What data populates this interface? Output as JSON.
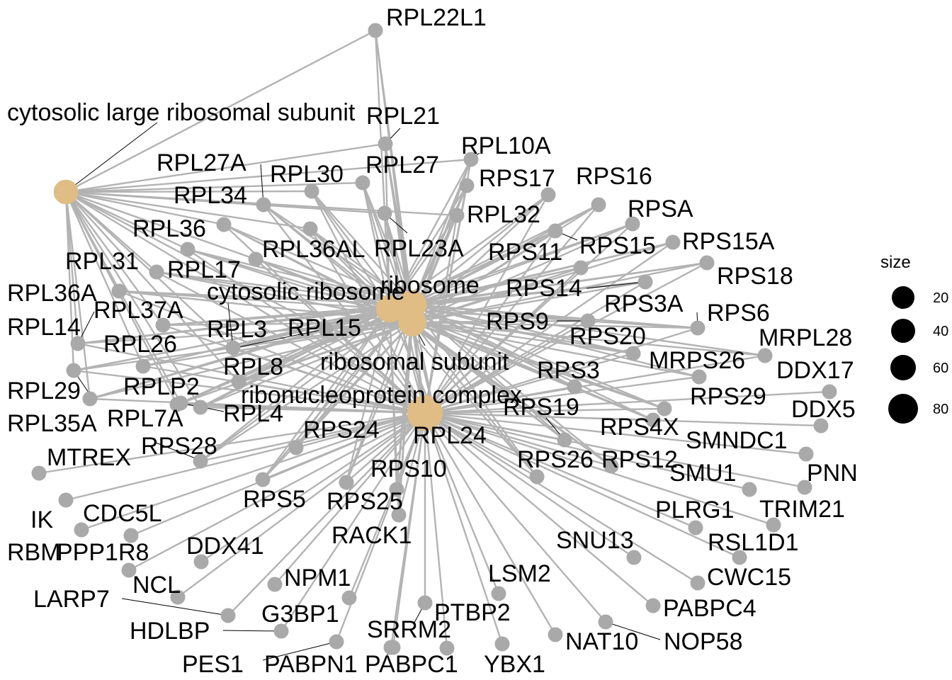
{
  "colors": {
    "category": "#dfbd85",
    "gene": "#a9a9a9",
    "edge": "#b3b3b3",
    "leader": "#000000"
  },
  "categories": [
    {
      "id": "c1",
      "label": "cytosolic large ribosomal subunit",
      "size": 30
    },
    {
      "id": "c2",
      "label": "cytosolic ribosome",
      "size": 42
    },
    {
      "id": "c3",
      "label": "ribosome",
      "size": 50
    },
    {
      "id": "c4",
      "label": "ribosomal subunit",
      "size": 46
    },
    {
      "id": "c5",
      "label": "ribonucleoprotein complex",
      "size": 90
    }
  ],
  "genes": [
    {
      "id": "RPL22L1",
      "label": "RPL22L1"
    },
    {
      "id": "RPL21",
      "label": "RPL21"
    },
    {
      "id": "RPL10A",
      "label": "RPL10A"
    },
    {
      "id": "RPL27A",
      "label": "RPL27A"
    },
    {
      "id": "RPL30",
      "label": "RPL30"
    },
    {
      "id": "RPL27",
      "label": "RPL27"
    },
    {
      "id": "RPS17",
      "label": "RPS17"
    },
    {
      "id": "RPS16",
      "label": "RPS16"
    },
    {
      "id": "RPL34",
      "label": "RPL34"
    },
    {
      "id": "RPL32",
      "label": "RPL32"
    },
    {
      "id": "RPSA",
      "label": "RPSA"
    },
    {
      "id": "RPL36",
      "label": "RPL36"
    },
    {
      "id": "RPL36AL",
      "label": "RPL36AL"
    },
    {
      "id": "RPL23A",
      "label": "RPL23A"
    },
    {
      "id": "RPS11",
      "label": "RPS11"
    },
    {
      "id": "RPS15",
      "label": "RPS15"
    },
    {
      "id": "RPS15A",
      "label": "RPS15A"
    },
    {
      "id": "RPL31",
      "label": "RPL31"
    },
    {
      "id": "RPL17",
      "label": "RPL17"
    },
    {
      "id": "RPS18",
      "label": "RPS18"
    },
    {
      "id": "RPL36A",
      "label": "RPL36A"
    },
    {
      "id": "RPS14",
      "label": "RPS14"
    },
    {
      "id": "RPL37A",
      "label": "RPL37A"
    },
    {
      "id": "RPS3A",
      "label": "RPS3A"
    },
    {
      "id": "RPS6",
      "label": "RPS6"
    },
    {
      "id": "RPL14",
      "label": "RPL14"
    },
    {
      "id": "RPL3",
      "label": "RPL3"
    },
    {
      "id": "RPL15",
      "label": "RPL15"
    },
    {
      "id": "RPS9",
      "label": "RPS9"
    },
    {
      "id": "RPS20",
      "label": "RPS20"
    },
    {
      "id": "MRPL28",
      "label": "MRPL28"
    },
    {
      "id": "RPL26",
      "label": "RPL26"
    },
    {
      "id": "MRPS26",
      "label": "MRPS26"
    },
    {
      "id": "RPL8",
      "label": "RPL8"
    },
    {
      "id": "DDX17",
      "label": "DDX17"
    },
    {
      "id": "RPS3",
      "label": "RPS3"
    },
    {
      "id": "RPL29",
      "label": "RPL29"
    },
    {
      "id": "RPLP2",
      "label": "RPLP2"
    },
    {
      "id": "RPS29",
      "label": "RPS29"
    },
    {
      "id": "RPL35A",
      "label": "RPL35A"
    },
    {
      "id": "RPL7A",
      "label": "RPL7A"
    },
    {
      "id": "RPL4",
      "label": "RPL4"
    },
    {
      "id": "RPS19",
      "label": "RPS19"
    },
    {
      "id": "DDX5",
      "label": "DDX5"
    },
    {
      "id": "RPS4X",
      "label": "RPS4X"
    },
    {
      "id": "RPS24",
      "label": "RPS24"
    },
    {
      "id": "RPL24",
      "label": "RPL24"
    },
    {
      "id": "SMNDC1",
      "label": "SMNDC1"
    },
    {
      "id": "MTREX",
      "label": "MTREX"
    },
    {
      "id": "RPS28",
      "label": "RPS28"
    },
    {
      "id": "RPS26",
      "label": "RPS26"
    },
    {
      "id": "RPS12",
      "label": "RPS12"
    },
    {
      "id": "PNN",
      "label": "PNN"
    },
    {
      "id": "RPS10",
      "label": "RPS10"
    },
    {
      "id": "SMU1",
      "label": "SMU1"
    },
    {
      "id": "IK",
      "label": "IK"
    },
    {
      "id": "CDC5L",
      "label": "CDC5L"
    },
    {
      "id": "RPS5",
      "label": "RPS5"
    },
    {
      "id": "RPS25",
      "label": "RPS25"
    },
    {
      "id": "PLRG1",
      "label": "PLRG1"
    },
    {
      "id": "TRIM21",
      "label": "TRIM21"
    },
    {
      "id": "RBM",
      "label": "RBM"
    },
    {
      "id": "PPP1R8",
      "label": "PPP1R8"
    },
    {
      "id": "DDX41",
      "label": "DDX41"
    },
    {
      "id": "RACK1",
      "label": "RACK1"
    },
    {
      "id": "SNU13",
      "label": "SNU13"
    },
    {
      "id": "RSL1D1",
      "label": "RSL1D1"
    },
    {
      "id": "NCL",
      "label": "NCL"
    },
    {
      "id": "LSM2",
      "label": "LSM2"
    },
    {
      "id": "NPM1",
      "label": "NPM1"
    },
    {
      "id": "CWC15",
      "label": "CWC15"
    },
    {
      "id": "LARP7",
      "label": "LARP7"
    },
    {
      "id": "G3BP1",
      "label": "G3BP1"
    },
    {
      "id": "PTBP2",
      "label": "PTBP2"
    },
    {
      "id": "PABPC4",
      "label": "PABPC4"
    },
    {
      "id": "HDLBP",
      "label": "HDLBP"
    },
    {
      "id": "SRRM2",
      "label": "SRRM2"
    },
    {
      "id": "NAT10",
      "label": "NAT10"
    },
    {
      "id": "NOP58",
      "label": "NOP58"
    },
    {
      "id": "PES1",
      "label": "PES1"
    },
    {
      "id": "PABPN1",
      "label": "PABPN1"
    },
    {
      "id": "PABPC1",
      "label": "PABPC1"
    },
    {
      "id": "YBX1",
      "label": "YBX1"
    }
  ],
  "legend": {
    "title": "size",
    "items": [
      {
        "label": "20"
      },
      {
        "label": "40"
      },
      {
        "label": "60"
      },
      {
        "label": "80"
      }
    ]
  }
}
